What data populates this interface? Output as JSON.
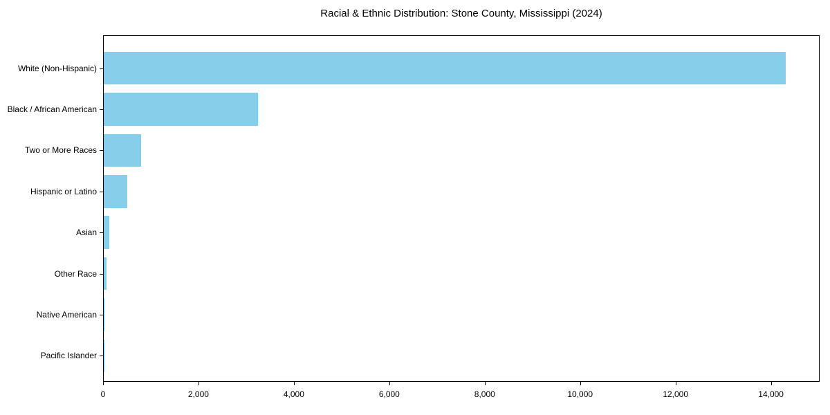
{
  "chart_data": {
    "type": "bar",
    "orientation": "horizontal",
    "title": "Racial & Ethnic Distribution: Stone County, Mississippi (2024)",
    "categories": [
      "White (Non-Hispanic)",
      "Black / African American",
      "Two or More Races",
      "Hispanic or Latino",
      "Asian",
      "Other Race",
      "Native American",
      "Pacific Islander"
    ],
    "values": [
      14300,
      3240,
      790,
      500,
      110,
      60,
      15,
      8
    ],
    "xlabel": "",
    "ylabel": "",
    "xlim": [
      0,
      15020
    ],
    "x_ticks": [
      0,
      2000,
      4000,
      6000,
      8000,
      10000,
      12000,
      14000
    ],
    "x_tick_labels": [
      "0",
      "2,000",
      "4,000",
      "6,000",
      "8,000",
      "10,000",
      "12,000",
      "14,000"
    ],
    "bar_color": "#87CEEB",
    "background_color": "#FFFFFF",
    "text_color": "#000000",
    "grid": false,
    "legend": false,
    "spine_box": true
  }
}
